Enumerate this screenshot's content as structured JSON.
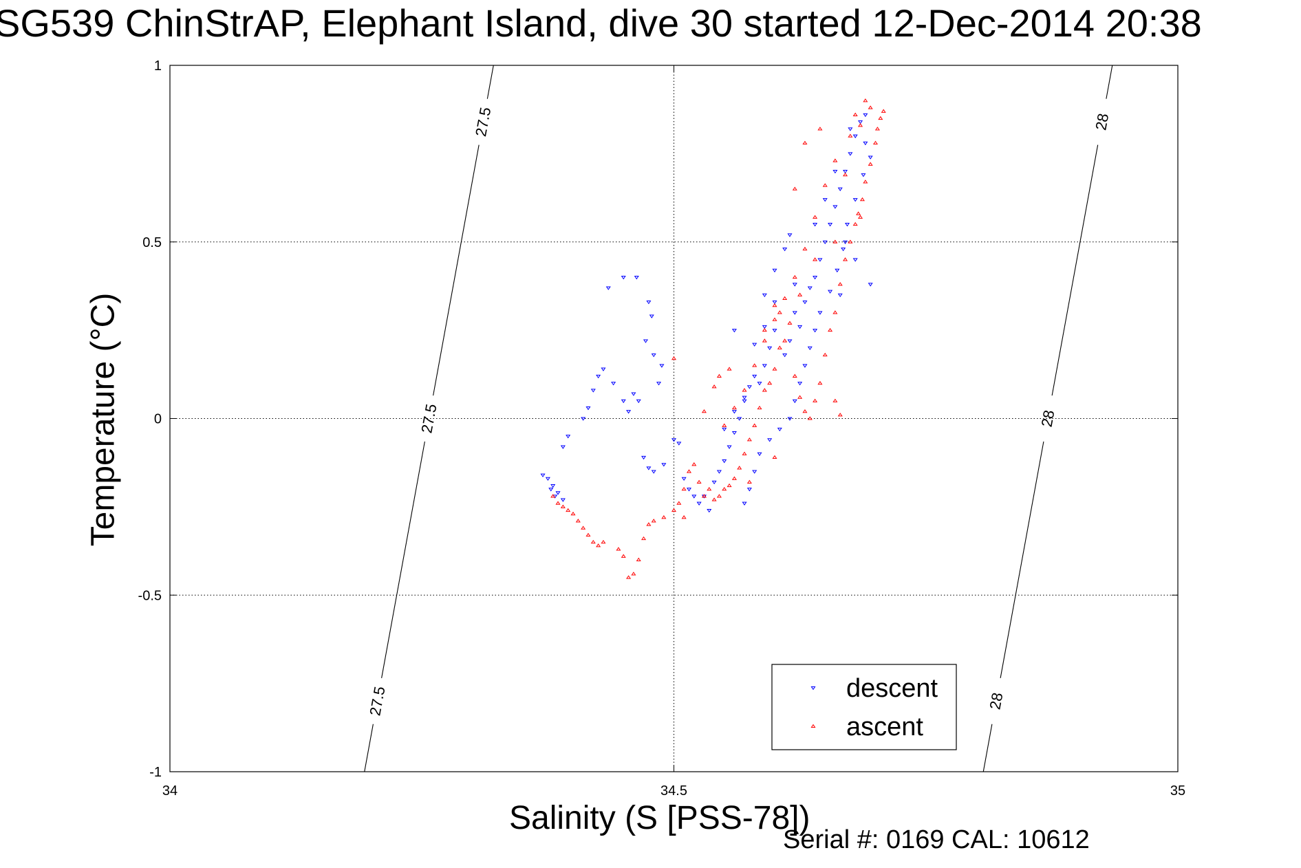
{
  "chart_data": {
    "type": "scatter",
    "title": "SG539 ChinStrAP, Elephant Island, dive 30 started 12-Dec-2014 20:38",
    "xlabel": "Salinity (S [PSS-78])",
    "ylabel": "Temperature (°C)",
    "xlim": [
      34,
      35
    ],
    "ylim": [
      -1,
      1
    ],
    "xticks": [
      "34",
      "34.5",
      "35"
    ],
    "yticks": [
      "1",
      "0.5",
      "0",
      "-0.5",
      "-1"
    ],
    "grid": true,
    "legend_placement": "bottom-right",
    "density_contours": [
      {
        "label": "27.5",
        "points": [
          [
            34.193,
            -1.0
          ],
          [
            34.321,
            1.0
          ]
        ]
      },
      {
        "label": "28",
        "points": [
          [
            34.807,
            -1.0
          ],
          [
            34.935,
            1.0
          ]
        ]
      }
    ],
    "series": [
      {
        "name": "descent",
        "color": "#0000ff",
        "marker": "triangle-down",
        "points": [
          [
            34.37,
            -0.16
          ],
          [
            34.375,
            -0.17
          ],
          [
            34.38,
            -0.19
          ],
          [
            34.385,
            -0.21
          ],
          [
            34.39,
            -0.23
          ],
          [
            34.382,
            -0.22
          ],
          [
            34.378,
            -0.2
          ],
          [
            34.39,
            -0.08
          ],
          [
            34.395,
            -0.05
          ],
          [
            34.41,
            0.0
          ],
          [
            34.415,
            0.03
          ],
          [
            34.42,
            0.08
          ],
          [
            34.425,
            0.12
          ],
          [
            34.43,
            0.14
          ],
          [
            34.44,
            0.1
          ],
          [
            34.45,
            0.05
          ],
          [
            34.455,
            0.02
          ],
          [
            34.46,
            0.07
          ],
          [
            34.465,
            0.05
          ],
          [
            34.472,
            0.22
          ],
          [
            34.478,
            0.29
          ],
          [
            34.48,
            0.18
          ],
          [
            34.485,
            0.1
          ],
          [
            34.488,
            0.15
          ],
          [
            34.435,
            0.37
          ],
          [
            34.45,
            0.4
          ],
          [
            34.463,
            0.4
          ],
          [
            34.475,
            0.33
          ],
          [
            34.47,
            -0.11
          ],
          [
            34.475,
            -0.14
          ],
          [
            34.48,
            -0.15
          ],
          [
            34.49,
            -0.13
          ],
          [
            34.5,
            -0.06
          ],
          [
            34.505,
            -0.07
          ],
          [
            34.51,
            -0.17
          ],
          [
            34.515,
            -0.2
          ],
          [
            34.52,
            -0.22
          ],
          [
            34.525,
            -0.24
          ],
          [
            34.53,
            -0.22
          ],
          [
            34.535,
            -0.26
          ],
          [
            34.54,
            -0.18
          ],
          [
            34.545,
            -0.15
          ],
          [
            34.55,
            -0.12
          ],
          [
            34.555,
            -0.08
          ],
          [
            34.56,
            -0.04
          ],
          [
            34.565,
            0.0
          ],
          [
            34.57,
            0.05
          ],
          [
            34.575,
            0.09
          ],
          [
            34.58,
            0.12
          ],
          [
            34.585,
            0.1
          ],
          [
            34.59,
            0.15
          ],
          [
            34.595,
            0.2
          ],
          [
            34.6,
            0.25
          ],
          [
            34.61,
            0.18
          ],
          [
            34.615,
            0.22
          ],
          [
            34.62,
            0.3
          ],
          [
            34.625,
            0.26
          ],
          [
            34.63,
            0.33
          ],
          [
            34.635,
            0.37
          ],
          [
            34.64,
            0.4
          ],
          [
            34.645,
            0.45
          ],
          [
            34.65,
            0.5
          ],
          [
            34.655,
            0.55
          ],
          [
            34.66,
            0.6
          ],
          [
            34.665,
            0.65
          ],
          [
            34.67,
            0.7
          ],
          [
            34.675,
            0.75
          ],
          [
            34.68,
            0.8
          ],
          [
            34.685,
            0.84
          ],
          [
            34.69,
            0.78
          ],
          [
            34.695,
            0.74
          ],
          [
            34.688,
            0.69
          ],
          [
            34.68,
            0.62
          ],
          [
            34.672,
            0.55
          ],
          [
            34.668,
            0.48
          ],
          [
            34.662,
            0.42
          ],
          [
            34.655,
            0.36
          ],
          [
            34.645,
            0.3
          ],
          [
            34.64,
            0.25
          ],
          [
            34.635,
            0.2
          ],
          [
            34.63,
            0.15
          ],
          [
            34.625,
            0.1
          ],
          [
            34.62,
            0.05
          ],
          [
            34.615,
            0.0
          ],
          [
            34.605,
            -0.03
          ],
          [
            34.595,
            -0.06
          ],
          [
            34.585,
            -0.1
          ],
          [
            34.58,
            -0.15
          ],
          [
            34.575,
            -0.2
          ],
          [
            34.57,
            -0.24
          ],
          [
            34.62,
            0.38
          ],
          [
            34.64,
            0.55
          ],
          [
            34.66,
            0.7
          ],
          [
            34.675,
            0.82
          ],
          [
            34.69,
            0.86
          ],
          [
            34.6,
            0.33
          ],
          [
            34.59,
            0.26
          ],
          [
            34.58,
            0.21
          ],
          [
            34.57,
            0.06
          ],
          [
            34.56,
            0.02
          ],
          [
            34.55,
            -0.03
          ],
          [
            34.6,
            0.42
          ],
          [
            34.61,
            0.48
          ],
          [
            34.615,
            0.52
          ],
          [
            34.665,
            0.35
          ],
          [
            34.67,
            0.5
          ],
          [
            34.68,
            0.45
          ],
          [
            34.56,
            0.25
          ],
          [
            34.59,
            0.35
          ],
          [
            34.65,
            0.62
          ],
          [
            34.695,
            0.38
          ]
        ]
      },
      {
        "name": "ascent",
        "color": "#ff0000",
        "marker": "triangle-up",
        "points": [
          [
            34.38,
            -0.22
          ],
          [
            34.385,
            -0.24
          ],
          [
            34.39,
            -0.25
          ],
          [
            34.395,
            -0.26
          ],
          [
            34.4,
            -0.27
          ],
          [
            34.405,
            -0.29
          ],
          [
            34.41,
            -0.31
          ],
          [
            34.415,
            -0.33
          ],
          [
            34.42,
            -0.35
          ],
          [
            34.425,
            -0.36
          ],
          [
            34.43,
            -0.35
          ],
          [
            34.445,
            -0.37
          ],
          [
            34.45,
            -0.39
          ],
          [
            34.455,
            -0.45
          ],
          [
            34.46,
            -0.44
          ],
          [
            34.465,
            -0.4
          ],
          [
            34.47,
            -0.34
          ],
          [
            34.475,
            -0.3
          ],
          [
            34.48,
            -0.29
          ],
          [
            34.49,
            -0.28
          ],
          [
            34.5,
            -0.26
          ],
          [
            34.505,
            -0.24
          ],
          [
            34.51,
            -0.2
          ],
          [
            34.515,
            -0.15
          ],
          [
            34.52,
            -0.13
          ],
          [
            34.525,
            -0.18
          ],
          [
            34.53,
            -0.22
          ],
          [
            34.535,
            -0.2
          ],
          [
            34.54,
            -0.23
          ],
          [
            34.545,
            -0.22
          ],
          [
            34.55,
            -0.2
          ],
          [
            34.555,
            -0.19
          ],
          [
            34.56,
            -0.17
          ],
          [
            34.565,
            -0.14
          ],
          [
            34.57,
            -0.1
          ],
          [
            34.575,
            -0.06
          ],
          [
            34.58,
            -0.02
          ],
          [
            34.585,
            0.03
          ],
          [
            34.59,
            0.08
          ],
          [
            34.595,
            0.1
          ],
          [
            34.6,
            0.14
          ],
          [
            34.605,
            0.2
          ],
          [
            34.61,
            0.22
          ],
          [
            34.62,
            0.12
          ],
          [
            34.625,
            0.06
          ],
          [
            34.63,
            0.02
          ],
          [
            34.635,
            0.0
          ],
          [
            34.64,
            0.05
          ],
          [
            34.645,
            0.1
          ],
          [
            34.65,
            0.18
          ],
          [
            34.655,
            0.25
          ],
          [
            34.66,
            0.3
          ],
          [
            34.665,
            0.38
          ],
          [
            34.67,
            0.45
          ],
          [
            34.675,
            0.5
          ],
          [
            34.68,
            0.55
          ],
          [
            34.683,
            0.58
          ],
          [
            34.687,
            0.62
          ],
          [
            34.69,
            0.67
          ],
          [
            34.695,
            0.72
          ],
          [
            34.7,
            0.78
          ],
          [
            34.702,
            0.82
          ],
          [
            34.705,
            0.85
          ],
          [
            34.708,
            0.87
          ],
          [
            34.695,
            0.88
          ],
          [
            34.69,
            0.9
          ],
          [
            34.685,
            0.83
          ],
          [
            34.68,
            0.86
          ],
          [
            34.675,
            0.8
          ],
          [
            34.66,
            0.73
          ],
          [
            34.65,
            0.66
          ],
          [
            34.64,
            0.57
          ],
          [
            34.63,
            0.48
          ],
          [
            34.62,
            0.4
          ],
          [
            34.61,
            0.34
          ],
          [
            34.6,
            0.28
          ],
          [
            34.59,
            0.22
          ],
          [
            34.58,
            0.15
          ],
          [
            34.57,
            0.08
          ],
          [
            34.56,
            0.03
          ],
          [
            34.55,
            -0.02
          ],
          [
            34.53,
            0.02
          ],
          [
            34.54,
            0.09
          ],
          [
            34.545,
            0.12
          ],
          [
            34.555,
            0.14
          ],
          [
            34.59,
            0.25
          ],
          [
            34.6,
            0.32
          ],
          [
            34.645,
            0.82
          ],
          [
            34.67,
            0.69
          ],
          [
            34.685,
            0.57
          ],
          [
            34.64,
            0.45
          ],
          [
            34.625,
            0.35
          ],
          [
            34.615,
            0.27
          ],
          [
            34.605,
            0.3
          ],
          [
            34.575,
            -0.18
          ],
          [
            34.6,
            -0.11
          ],
          [
            34.66,
            0.05
          ],
          [
            34.665,
            0.01
          ],
          [
            34.5,
            0.17
          ],
          [
            34.51,
            -0.28
          ],
          [
            34.62,
            0.65
          ],
          [
            34.66,
            0.5
          ],
          [
            34.63,
            0.78
          ]
        ]
      }
    ]
  },
  "footer_note": "Serial #: 0169 CAL: 10612"
}
